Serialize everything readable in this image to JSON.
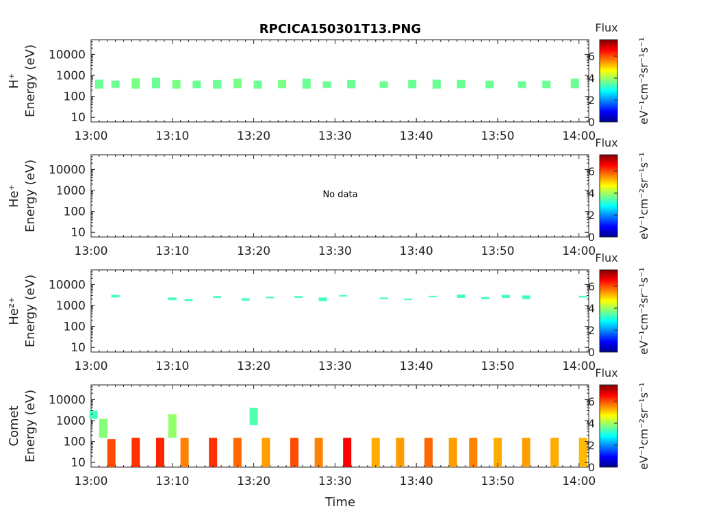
{
  "title": "RPCICA150301T13.PNG",
  "x_label": "Time",
  "x_ticks": [
    "13:00",
    "13:10",
    "13:20",
    "13:30",
    "13:40",
    "13:50",
    "14:00"
  ],
  "y_ticks": [
    "10",
    "100",
    "1000",
    "10000"
  ],
  "colorbar": {
    "label": "Flux",
    "unit": "eV⁻¹cm⁻²sr⁻¹s⁻¹",
    "ticks": [
      "0",
      "2",
      "4",
      "6"
    ],
    "range": [
      0,
      7.5
    ],
    "colormap": "jet"
  },
  "panels": [
    {
      "species": "H⁺",
      "axis_label": "Energy (eV)",
      "note": ""
    },
    {
      "species": "He⁺",
      "axis_label": "Energy (eV)",
      "note": "No data"
    },
    {
      "species": "He²⁺",
      "axis_label": "Energy (eV)",
      "note": ""
    },
    {
      "species": "Comet",
      "axis_label": "Energy (eV)",
      "note": ""
    }
  ],
  "chart_data": [
    {
      "type": "heatmap",
      "title": "RPCICA150301T13.PNG",
      "xlabel": "",
      "ylabel": "H⁺ Energy (eV)",
      "x_range": [
        "13:00",
        "14:01"
      ],
      "y_range_eV": [
        6,
        50000
      ],
      "y_scale": "log",
      "z_range": [
        0,
        7.5
      ],
      "segments": [
        {
          "t": 1.0,
          "e_lo": 230,
          "e_hi": 620,
          "flux": 3.6
        },
        {
          "t": 3.0,
          "e_lo": 250,
          "e_hi": 560,
          "flux": 3.6
        },
        {
          "t": 5.5,
          "e_lo": 230,
          "e_hi": 720,
          "flux": 3.7
        },
        {
          "t": 8.0,
          "e_lo": 240,
          "e_hi": 760,
          "flux": 3.6
        },
        {
          "t": 10.5,
          "e_lo": 230,
          "e_hi": 600,
          "flux": 3.7
        },
        {
          "t": 13.0,
          "e_lo": 240,
          "e_hi": 560,
          "flux": 3.6
        },
        {
          "t": 15.5,
          "e_lo": 230,
          "e_hi": 600,
          "flux": 3.6
        },
        {
          "t": 18.0,
          "e_lo": 240,
          "e_hi": 700,
          "flux": 3.7
        },
        {
          "t": 20.5,
          "e_lo": 230,
          "e_hi": 560,
          "flux": 3.6
        },
        {
          "t": 23.5,
          "e_lo": 240,
          "e_hi": 600,
          "flux": 3.7
        },
        {
          "t": 26.5,
          "e_lo": 230,
          "e_hi": 700,
          "flux": 3.6
        },
        {
          "t": 29.0,
          "e_lo": 250,
          "e_hi": 520,
          "flux": 3.6
        },
        {
          "t": 32.0,
          "e_lo": 240,
          "e_hi": 600,
          "flux": 3.6
        },
        {
          "t": 36.0,
          "e_lo": 250,
          "e_hi": 520,
          "flux": 3.6
        },
        {
          "t": 39.5,
          "e_lo": 240,
          "e_hi": 600,
          "flux": 3.6
        },
        {
          "t": 42.5,
          "e_lo": 230,
          "e_hi": 620,
          "flux": 3.6
        },
        {
          "t": 45.5,
          "e_lo": 240,
          "e_hi": 600,
          "flux": 3.6
        },
        {
          "t": 49.0,
          "e_lo": 240,
          "e_hi": 560,
          "flux": 3.6
        },
        {
          "t": 53.0,
          "e_lo": 250,
          "e_hi": 520,
          "flux": 3.6
        },
        {
          "t": 56.0,
          "e_lo": 240,
          "e_hi": 560,
          "flux": 3.6
        },
        {
          "t": 59.5,
          "e_lo": 240,
          "e_hi": 700,
          "flux": 3.6
        }
      ]
    },
    {
      "type": "heatmap",
      "title": "",
      "xlabel": "",
      "ylabel": "He⁺ Energy (eV)",
      "x_range": [
        "13:00",
        "14:01"
      ],
      "y_range_eV": [
        6,
        50000
      ],
      "y_scale": "log",
      "z_range": [
        0,
        7.5
      ],
      "segments": []
    },
    {
      "type": "heatmap",
      "title": "",
      "xlabel": "",
      "ylabel": "He²⁺ Energy (eV)",
      "x_range": [
        "13:00",
        "14:01"
      ],
      "y_range_eV": [
        6,
        50000
      ],
      "y_scale": "log",
      "z_range": [
        0,
        7.5
      ],
      "segments": [
        {
          "t": 3.0,
          "e_lo": 2400,
          "e_hi": 3200,
          "flux": 3.3
        },
        {
          "t": 10.0,
          "e_lo": 1800,
          "e_hi": 2400,
          "flux": 3.3
        },
        {
          "t": 12.0,
          "e_lo": 1600,
          "e_hi": 2000,
          "flux": 3.3
        },
        {
          "t": 15.5,
          "e_lo": 2300,
          "e_hi": 2800,
          "flux": 3.3
        },
        {
          "t": 19.0,
          "e_lo": 1700,
          "e_hi": 2200,
          "flux": 3.3
        },
        {
          "t": 22.0,
          "e_lo": 2200,
          "e_hi": 2600,
          "flux": 3.3
        },
        {
          "t": 25.5,
          "e_lo": 2300,
          "e_hi": 2800,
          "flux": 3.3
        },
        {
          "t": 28.5,
          "e_lo": 1600,
          "e_hi": 2400,
          "flux": 3.3
        },
        {
          "t": 31.0,
          "e_lo": 2700,
          "e_hi": 3100,
          "flux": 3.3
        },
        {
          "t": 36.0,
          "e_lo": 2000,
          "e_hi": 2400,
          "flux": 3.3
        },
        {
          "t": 39.0,
          "e_lo": 1800,
          "e_hi": 2100,
          "flux": 3.3
        },
        {
          "t": 42.0,
          "e_lo": 2500,
          "e_hi": 2900,
          "flux": 3.3
        },
        {
          "t": 45.5,
          "e_lo": 2300,
          "e_hi": 3300,
          "flux": 3.3
        },
        {
          "t": 48.5,
          "e_lo": 2000,
          "e_hi": 2500,
          "flux": 3.3
        },
        {
          "t": 51.0,
          "e_lo": 2300,
          "e_hi": 3200,
          "flux": 3.3
        },
        {
          "t": 53.5,
          "e_lo": 2000,
          "e_hi": 3000,
          "flux": 3.3
        },
        {
          "t": 60.5,
          "e_lo": 2400,
          "e_hi": 2900,
          "flux": 3.3
        }
      ]
    },
    {
      "type": "heatmap",
      "title": "",
      "xlabel": "Time",
      "ylabel": "Comet Energy (eV)",
      "x_range": [
        "13:00",
        "14:01"
      ],
      "y_range_eV": [
        6,
        50000
      ],
      "y_scale": "log",
      "z_range": [
        0,
        7.5
      ],
      "segments": [
        {
          "t": 0.3,
          "e_lo": 1200,
          "e_hi": 3000,
          "flux": 3.3
        },
        {
          "t": 1.5,
          "e_lo": 150,
          "e_hi": 1200,
          "flux": 3.8
        },
        {
          "t": 2.5,
          "e_lo": 5,
          "e_hi": 130,
          "flux": 6.0
        },
        {
          "t": 5.5,
          "e_lo": 5,
          "e_hi": 150,
          "flux": 6.2
        },
        {
          "t": 8.5,
          "e_lo": 5,
          "e_hi": 150,
          "flux": 6.3
        },
        {
          "t": 10.0,
          "e_lo": 150,
          "e_hi": 2000,
          "flux": 3.9
        },
        {
          "t": 11.5,
          "e_lo": 5,
          "e_hi": 150,
          "flux": 5.6
        },
        {
          "t": 15.0,
          "e_lo": 5,
          "e_hi": 150,
          "flux": 6.2
        },
        {
          "t": 18.0,
          "e_lo": 5,
          "e_hi": 150,
          "flux": 5.8
        },
        {
          "t": 20.0,
          "e_lo": 600,
          "e_hi": 4000,
          "flux": 3.4
        },
        {
          "t": 21.5,
          "e_lo": 5,
          "e_hi": 150,
          "flux": 5.4
        },
        {
          "t": 25.0,
          "e_lo": 5,
          "e_hi": 150,
          "flux": 6.0
        },
        {
          "t": 28.0,
          "e_lo": 5,
          "e_hi": 150,
          "flux": 5.6
        },
        {
          "t": 31.5,
          "e_lo": 5,
          "e_hi": 150,
          "flux": 6.6
        },
        {
          "t": 35.0,
          "e_lo": 5,
          "e_hi": 150,
          "flux": 5.3
        },
        {
          "t": 38.0,
          "e_lo": 5,
          "e_hi": 150,
          "flux": 5.4
        },
        {
          "t": 41.5,
          "e_lo": 5,
          "e_hi": 150,
          "flux": 5.8
        },
        {
          "t": 44.5,
          "e_lo": 5,
          "e_hi": 150,
          "flux": 5.4
        },
        {
          "t": 47.0,
          "e_lo": 5,
          "e_hi": 150,
          "flux": 5.6
        },
        {
          "t": 50.0,
          "e_lo": 5,
          "e_hi": 150,
          "flux": 5.3
        },
        {
          "t": 53.5,
          "e_lo": 5,
          "e_hi": 150,
          "flux": 5.4
        },
        {
          "t": 57.0,
          "e_lo": 5,
          "e_hi": 150,
          "flux": 5.3
        },
        {
          "t": 60.5,
          "e_lo": 5,
          "e_hi": 150,
          "flux": 5.2
        }
      ]
    }
  ]
}
